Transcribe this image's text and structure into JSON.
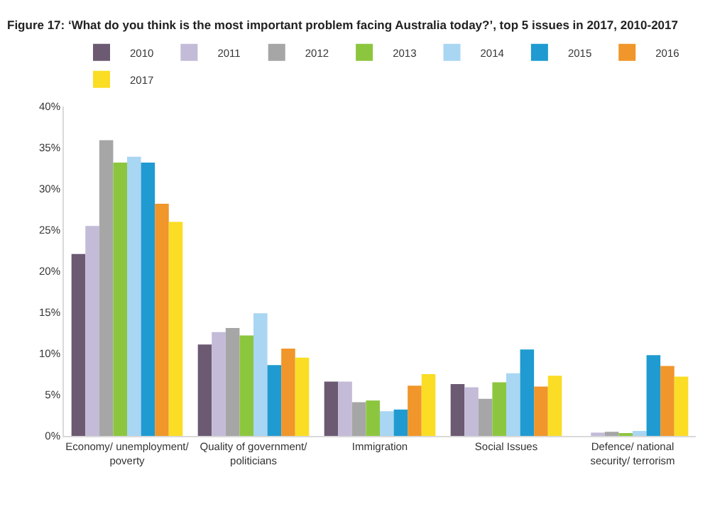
{
  "chart_data": {
    "type": "bar",
    "title": "Figure 17: ‘What do you think is the most important problem facing Australia today?’, top 5 issues in 2017, 2010-2017",
    "categories": [
      "Economy/ unemployment/ poverty",
      "Quality of government/ politicians",
      "Immigration",
      "Social Issues",
      "Defence/ national security/ terrorism"
    ],
    "series": [
      {
        "name": "2010",
        "color": "#6b5a72",
        "values": [
          22.1,
          11.1,
          6.6,
          6.3,
          0
        ]
      },
      {
        "name": "2011",
        "color": "#c3bbd8",
        "values": [
          25.5,
          12.6,
          6.6,
          5.9,
          0.4
        ]
      },
      {
        "name": "2012",
        "color": "#a6a6a6",
        "values": [
          35.9,
          13.1,
          4.1,
          4.5,
          0.5
        ]
      },
      {
        "name": "2013",
        "color": "#8cc63f",
        "values": [
          33.2,
          12.2,
          4.3,
          6.5,
          0.2
        ]
      },
      {
        "name": "2014",
        "color": "#a9d6f2",
        "values": [
          33.9,
          14.9,
          3.0,
          7.6,
          0.6
        ]
      },
      {
        "name": "2015",
        "color": "#1f9bd1",
        "values": [
          33.2,
          8.6,
          3.2,
          10.5,
          9.8
        ]
      },
      {
        "name": "2016",
        "color": "#f0962a",
        "values": [
          28.2,
          10.6,
          6.1,
          6.0,
          8.5
        ]
      },
      {
        "name": "2017",
        "color": "#fadd24",
        "values": [
          26.0,
          9.5,
          7.5,
          7.3,
          7.2
        ]
      }
    ],
    "ylim": [
      0,
      40
    ],
    "yticks": [
      {
        "value": 0,
        "label": "0%"
      },
      {
        "value": 5,
        "label": "5%"
      },
      {
        "value": 10,
        "label": "10%"
      },
      {
        "value": 15,
        "label": "15%"
      },
      {
        "value": 20,
        "label": "20%"
      },
      {
        "value": 25,
        "label": "25%"
      },
      {
        "value": 30,
        "label": "30%"
      },
      {
        "value": 35,
        "label": "35%"
      },
      {
        "value": 40,
        "label": "40%"
      }
    ],
    "grid": false,
    "legend": "top"
  }
}
